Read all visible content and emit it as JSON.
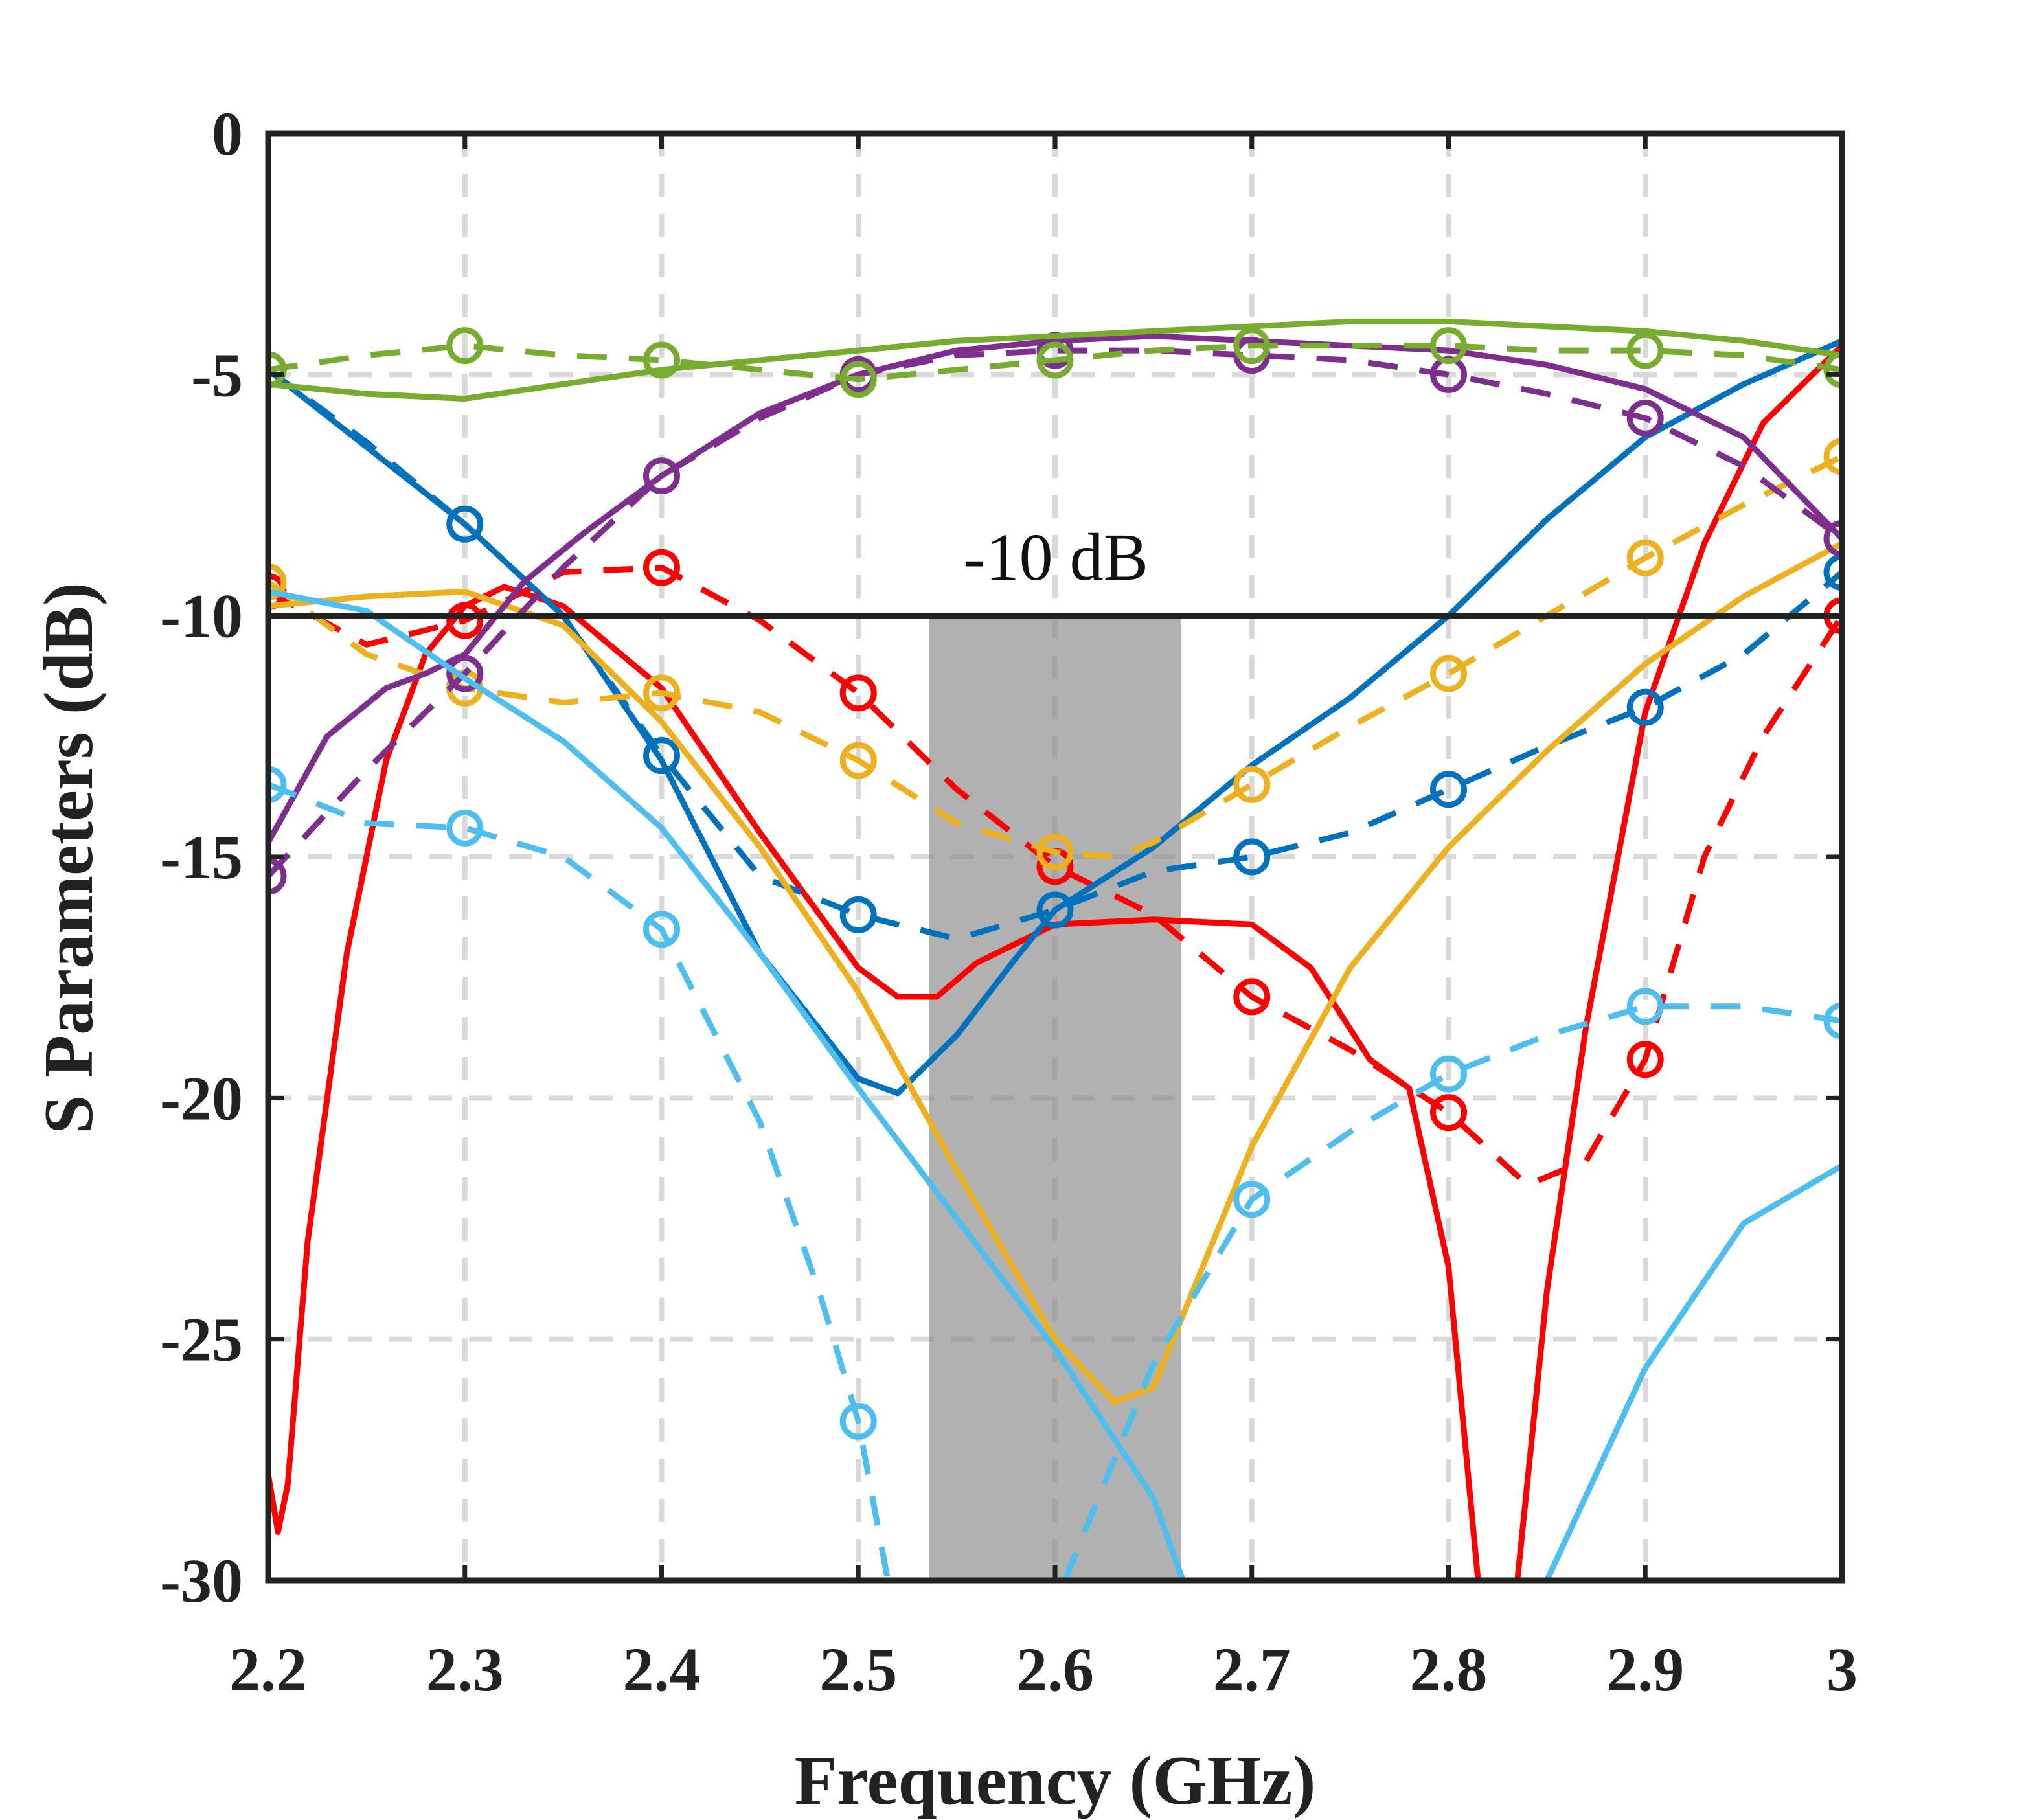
{
  "chart_data": {
    "type": "line",
    "xlabel": "Frequency (GHz)",
    "ylabel": "S Parameters (dB)",
    "xlim": [
      2.2,
      3.0
    ],
    "ylim": [
      -30,
      0
    ],
    "x_ticks": [
      2.2,
      2.3,
      2.4,
      2.5,
      2.6,
      2.7,
      2.8,
      2.9,
      3.0
    ],
    "x_tick_labels": [
      "2.2",
      "2.3",
      "2.4",
      "2.5",
      "2.6",
      "2.7",
      "2.8",
      "2.9",
      "3"
    ],
    "y_ticks": [
      0,
      -5,
      -10,
      -15,
      -20,
      -25,
      -30
    ],
    "y_tick_labels": [
      "0",
      "-5",
      "-10",
      "-15",
      "-20",
      "-25",
      "-30"
    ],
    "grid": true,
    "reference_line": {
      "y": -10,
      "label": "-10 dB",
      "color": "#222222"
    },
    "shaded_band": {
      "x": [
        2.536,
        2.664
      ],
      "color": "#8c8c8c"
    },
    "series": [
      {
        "name": "red solid",
        "color": "#ff0000",
        "dash": false,
        "markers": false,
        "x": [
          2.2,
          2.205,
          2.21,
          2.22,
          2.24,
          2.26,
          2.28,
          2.3,
          2.32,
          2.35,
          2.4,
          2.45,
          2.5,
          2.52,
          2.54,
          2.56,
          2.6,
          2.65,
          2.7,
          2.73,
          2.76,
          2.78,
          2.8,
          2.815
        ],
        "y": [
          -27.8,
          -29,
          -28,
          -23,
          -17,
          -13,
          -10.8,
          -9.8,
          -9.4,
          -9.8,
          -11.5,
          -14.5,
          -17.3,
          -17.9,
          -17.9,
          -17.2,
          -16.4,
          -16.3,
          -16.4,
          -17.3,
          -19.2,
          -19.8,
          -23.5,
          -30
        ]
      },
      {
        "name": "red solid right",
        "color": "#ff0000",
        "dash": false,
        "markers": false,
        "x": [
          2.835,
          2.85,
          2.87,
          2.9,
          2.93,
          2.96,
          3.0
        ],
        "y": [
          -30,
          -24,
          -18.5,
          -12,
          -8.5,
          -6,
          -4.4
        ]
      },
      {
        "name": "red dashed",
        "color": "#ff0000",
        "dash": true,
        "markers": true,
        "x": [
          2.2,
          2.25,
          2.3,
          2.35,
          2.4,
          2.45,
          2.5,
          2.55,
          2.6,
          2.65,
          2.7,
          2.75,
          2.8,
          2.84,
          2.87,
          2.9,
          2.93,
          2.96,
          3.0
        ],
        "y": [
          -9.5,
          -10.6,
          -10.1,
          -9.1,
          -9.0,
          -10.1,
          -11.6,
          -13.6,
          -15.2,
          -16.2,
          -17.9,
          -19.0,
          -20.3,
          -21.8,
          -21.3,
          -19.2,
          -15,
          -12.5,
          -10
        ],
        "marker_x": [
          2.2,
          2.3,
          2.4,
          2.5,
          2.6,
          2.7,
          2.8,
          2.9,
          3.0
        ],
        "marker_y": [
          -9.5,
          -10.1,
          -9.0,
          -11.6,
          -15.2,
          -17.9,
          -20.3,
          -19.2,
          -10
        ]
      },
      {
        "name": "blue solid",
        "color": "#0072bd",
        "dash": false,
        "markers": false,
        "x": [
          2.2,
          2.25,
          2.3,
          2.35,
          2.4,
          2.45,
          2.5,
          2.52,
          2.55,
          2.58,
          2.6,
          2.65,
          2.7,
          2.75,
          2.8,
          2.85,
          2.9,
          2.95,
          3.0
        ],
        "y": [
          -4.9,
          -6.5,
          -8.1,
          -10.0,
          -13.0,
          -17.0,
          -19.6,
          -19.9,
          -18.7,
          -17.1,
          -16.1,
          -14.8,
          -13.1,
          -11.7,
          -10.0,
          -8.0,
          -6.3,
          -5.2,
          -4.3
        ]
      },
      {
        "name": "blue dashed",
        "color": "#0072bd",
        "dash": true,
        "markers": true,
        "x": [
          2.2,
          2.25,
          2.3,
          2.35,
          2.4,
          2.45,
          2.5,
          2.55,
          2.6,
          2.65,
          2.7,
          2.75,
          2.8,
          2.85,
          2.9,
          2.95,
          3.0
        ],
        "y": [
          -4.9,
          -6.4,
          -8.1,
          -10.0,
          -12.9,
          -15.4,
          -16.2,
          -16.7,
          -16.1,
          -15.3,
          -15.0,
          -14.5,
          -13.6,
          -12.7,
          -11.9,
          -10.8,
          -9.1
        ],
        "marker_x": [
          2.2,
          2.3,
          2.4,
          2.5,
          2.6,
          2.7,
          2.8,
          2.9,
          3.0
        ],
        "marker_y": [
          -4.9,
          -8.1,
          -12.9,
          -16.2,
          -16.1,
          -15.0,
          -13.6,
          -11.9,
          -9.1
        ]
      },
      {
        "name": "yellow solid",
        "color": "#edb120",
        "dash": false,
        "markers": false,
        "x": [
          2.2,
          2.25,
          2.3,
          2.35,
          2.4,
          2.45,
          2.5,
          2.55,
          2.6,
          2.63,
          2.65,
          2.7,
          2.75,
          2.8,
          2.85,
          2.9,
          2.95,
          3.0
        ],
        "y": [
          -9.8,
          -9.6,
          -9.5,
          -10.2,
          -12.2,
          -14.8,
          -17.8,
          -21.5,
          -25.0,
          -26.3,
          -26.0,
          -21.0,
          -17.3,
          -14.8,
          -12.8,
          -11.0,
          -9.6,
          -8.5
        ]
      },
      {
        "name": "yellow dashed",
        "color": "#edb120",
        "dash": true,
        "markers": true,
        "x": [
          2.2,
          2.25,
          2.3,
          2.35,
          2.4,
          2.45,
          2.5,
          2.55,
          2.6,
          2.63,
          2.65,
          2.7,
          2.75,
          2.8,
          2.85,
          2.9,
          2.95,
          3.0
        ],
        "y": [
          -9.3,
          -10.8,
          -11.5,
          -11.8,
          -11.6,
          -12.0,
          -13.0,
          -14.3,
          -14.9,
          -15.0,
          -14.7,
          -13.5,
          -12.3,
          -11.2,
          -10.0,
          -8.8,
          -7.7,
          -6.7
        ],
        "marker_x": [
          2.2,
          2.3,
          2.4,
          2.5,
          2.6,
          2.7,
          2.8,
          2.9,
          3.0
        ],
        "marker_y": [
          -9.3,
          -11.5,
          -11.6,
          -13.0,
          -14.9,
          -13.5,
          -11.2,
          -8.8,
          -6.7
        ]
      },
      {
        "name": "purple solid",
        "color": "#7e2f8e",
        "dash": false,
        "markers": false,
        "x": [
          2.2,
          2.23,
          2.26,
          2.28,
          2.3,
          2.33,
          2.36,
          2.4,
          2.45,
          2.5,
          2.55,
          2.6,
          2.65,
          2.7,
          2.75,
          2.8,
          2.85,
          2.9,
          2.95,
          3.0
        ],
        "y": [
          -14.7,
          -12.5,
          -11.5,
          -11.2,
          -10.8,
          -9.3,
          -8.3,
          -7.1,
          -5.8,
          -5.0,
          -4.5,
          -4.3,
          -4.2,
          -4.3,
          -4.4,
          -4.5,
          -4.8,
          -5.3,
          -6.3,
          -8.4
        ]
      },
      {
        "name": "purple dashed",
        "color": "#7e2f8e",
        "dash": true,
        "markers": true,
        "x": [
          2.2,
          2.25,
          2.3,
          2.35,
          2.4,
          2.45,
          2.5,
          2.55,
          2.6,
          2.65,
          2.7,
          2.75,
          2.8,
          2.85,
          2.9,
          2.95,
          3.0
        ],
        "y": [
          -15.4,
          -13.2,
          -11.2,
          -9.0,
          -7.1,
          -5.9,
          -5.0,
          -4.6,
          -4.5,
          -4.5,
          -4.6,
          -4.7,
          -5.0,
          -5.4,
          -5.9,
          -6.9,
          -8.4
        ],
        "marker_x": [
          2.2,
          2.3,
          2.4,
          2.5,
          2.6,
          2.7,
          2.8,
          2.9,
          3.0
        ],
        "marker_y": [
          -15.4,
          -11.2,
          -7.1,
          -5.0,
          -4.5,
          -4.6,
          -5.0,
          -5.9,
          -8.4
        ]
      },
      {
        "name": "green solid",
        "color": "#77ac30",
        "dash": false,
        "markers": false,
        "x": [
          2.2,
          2.25,
          2.3,
          2.35,
          2.4,
          2.45,
          2.5,
          2.55,
          2.6,
          2.65,
          2.7,
          2.75,
          2.8,
          2.85,
          2.9,
          2.95,
          3.0
        ],
        "y": [
          -5.2,
          -5.4,
          -5.5,
          -5.2,
          -4.9,
          -4.7,
          -4.5,
          -4.3,
          -4.2,
          -4.1,
          -4.0,
          -3.9,
          -3.9,
          -4.0,
          -4.1,
          -4.3,
          -4.6
        ]
      },
      {
        "name": "green dashed",
        "color": "#77ac30",
        "dash": true,
        "markers": true,
        "x": [
          2.2,
          2.25,
          2.3,
          2.35,
          2.4,
          2.45,
          2.5,
          2.55,
          2.6,
          2.65,
          2.7,
          2.75,
          2.8,
          2.85,
          2.9,
          2.95,
          3.0
        ],
        "y": [
          -4.9,
          -4.6,
          -4.4,
          -4.6,
          -4.7,
          -4.9,
          -5.1,
          -4.9,
          -4.7,
          -4.5,
          -4.4,
          -4.4,
          -4.4,
          -4.5,
          -4.5,
          -4.6,
          -4.9
        ],
        "marker_x": [
          2.2,
          2.3,
          2.4,
          2.5,
          2.6,
          2.7,
          2.8,
          2.9,
          3.0
        ],
        "marker_y": [
          -4.9,
          -4.4,
          -4.7,
          -5.1,
          -4.7,
          -4.4,
          -4.4,
          -4.5,
          -4.9
        ]
      },
      {
        "name": "cyan solid",
        "color": "#4dbeee",
        "dash": false,
        "markers": false,
        "x": [
          2.2,
          2.25,
          2.3,
          2.35,
          2.4,
          2.45,
          2.5,
          2.55,
          2.6,
          2.65,
          2.665
        ],
        "y": [
          -9.5,
          -9.9,
          -11.3,
          -12.6,
          -14.4,
          -17.0,
          -19.8,
          -22.5,
          -25.2,
          -28.3,
          -30
        ]
      },
      {
        "name": "cyan solid right",
        "color": "#4dbeee",
        "dash": false,
        "markers": false,
        "x": [
          2.85,
          2.9,
          2.95,
          3.0
        ],
        "y": [
          -30,
          -25.6,
          -22.6,
          -21.4
        ]
      },
      {
        "name": "cyan dashed",
        "color": "#4dbeee",
        "dash": true,
        "markers": true,
        "x": [
          2.2,
          2.25,
          2.3,
          2.35,
          2.4,
          2.45,
          2.48,
          2.5,
          2.515
        ],
        "y": [
          -13.5,
          -14.3,
          -14.4,
          -15.0,
          -16.5,
          -20.5,
          -24.0,
          -26.7,
          -30
        ],
        "marker_x": [
          2.2,
          2.3,
          2.4,
          2.5
        ],
        "marker_y": [
          -13.5,
          -14.4,
          -16.5,
          -26.7
        ]
      },
      {
        "name": "cyan dashed right",
        "color": "#4dbeee",
        "dash": true,
        "markers": true,
        "x": [
          2.605,
          2.65,
          2.7,
          2.75,
          2.8,
          2.85,
          2.9,
          2.95,
          3.0
        ],
        "y": [
          -30,
          -25.5,
          -22.1,
          -20.7,
          -19.5,
          -18.7,
          -18.1,
          -18.1,
          -18.4
        ],
        "marker_x": [
          2.7,
          2.8,
          2.9,
          3.0
        ],
        "marker_y": [
          -22.1,
          -19.5,
          -18.1,
          -18.4
        ]
      }
    ]
  }
}
